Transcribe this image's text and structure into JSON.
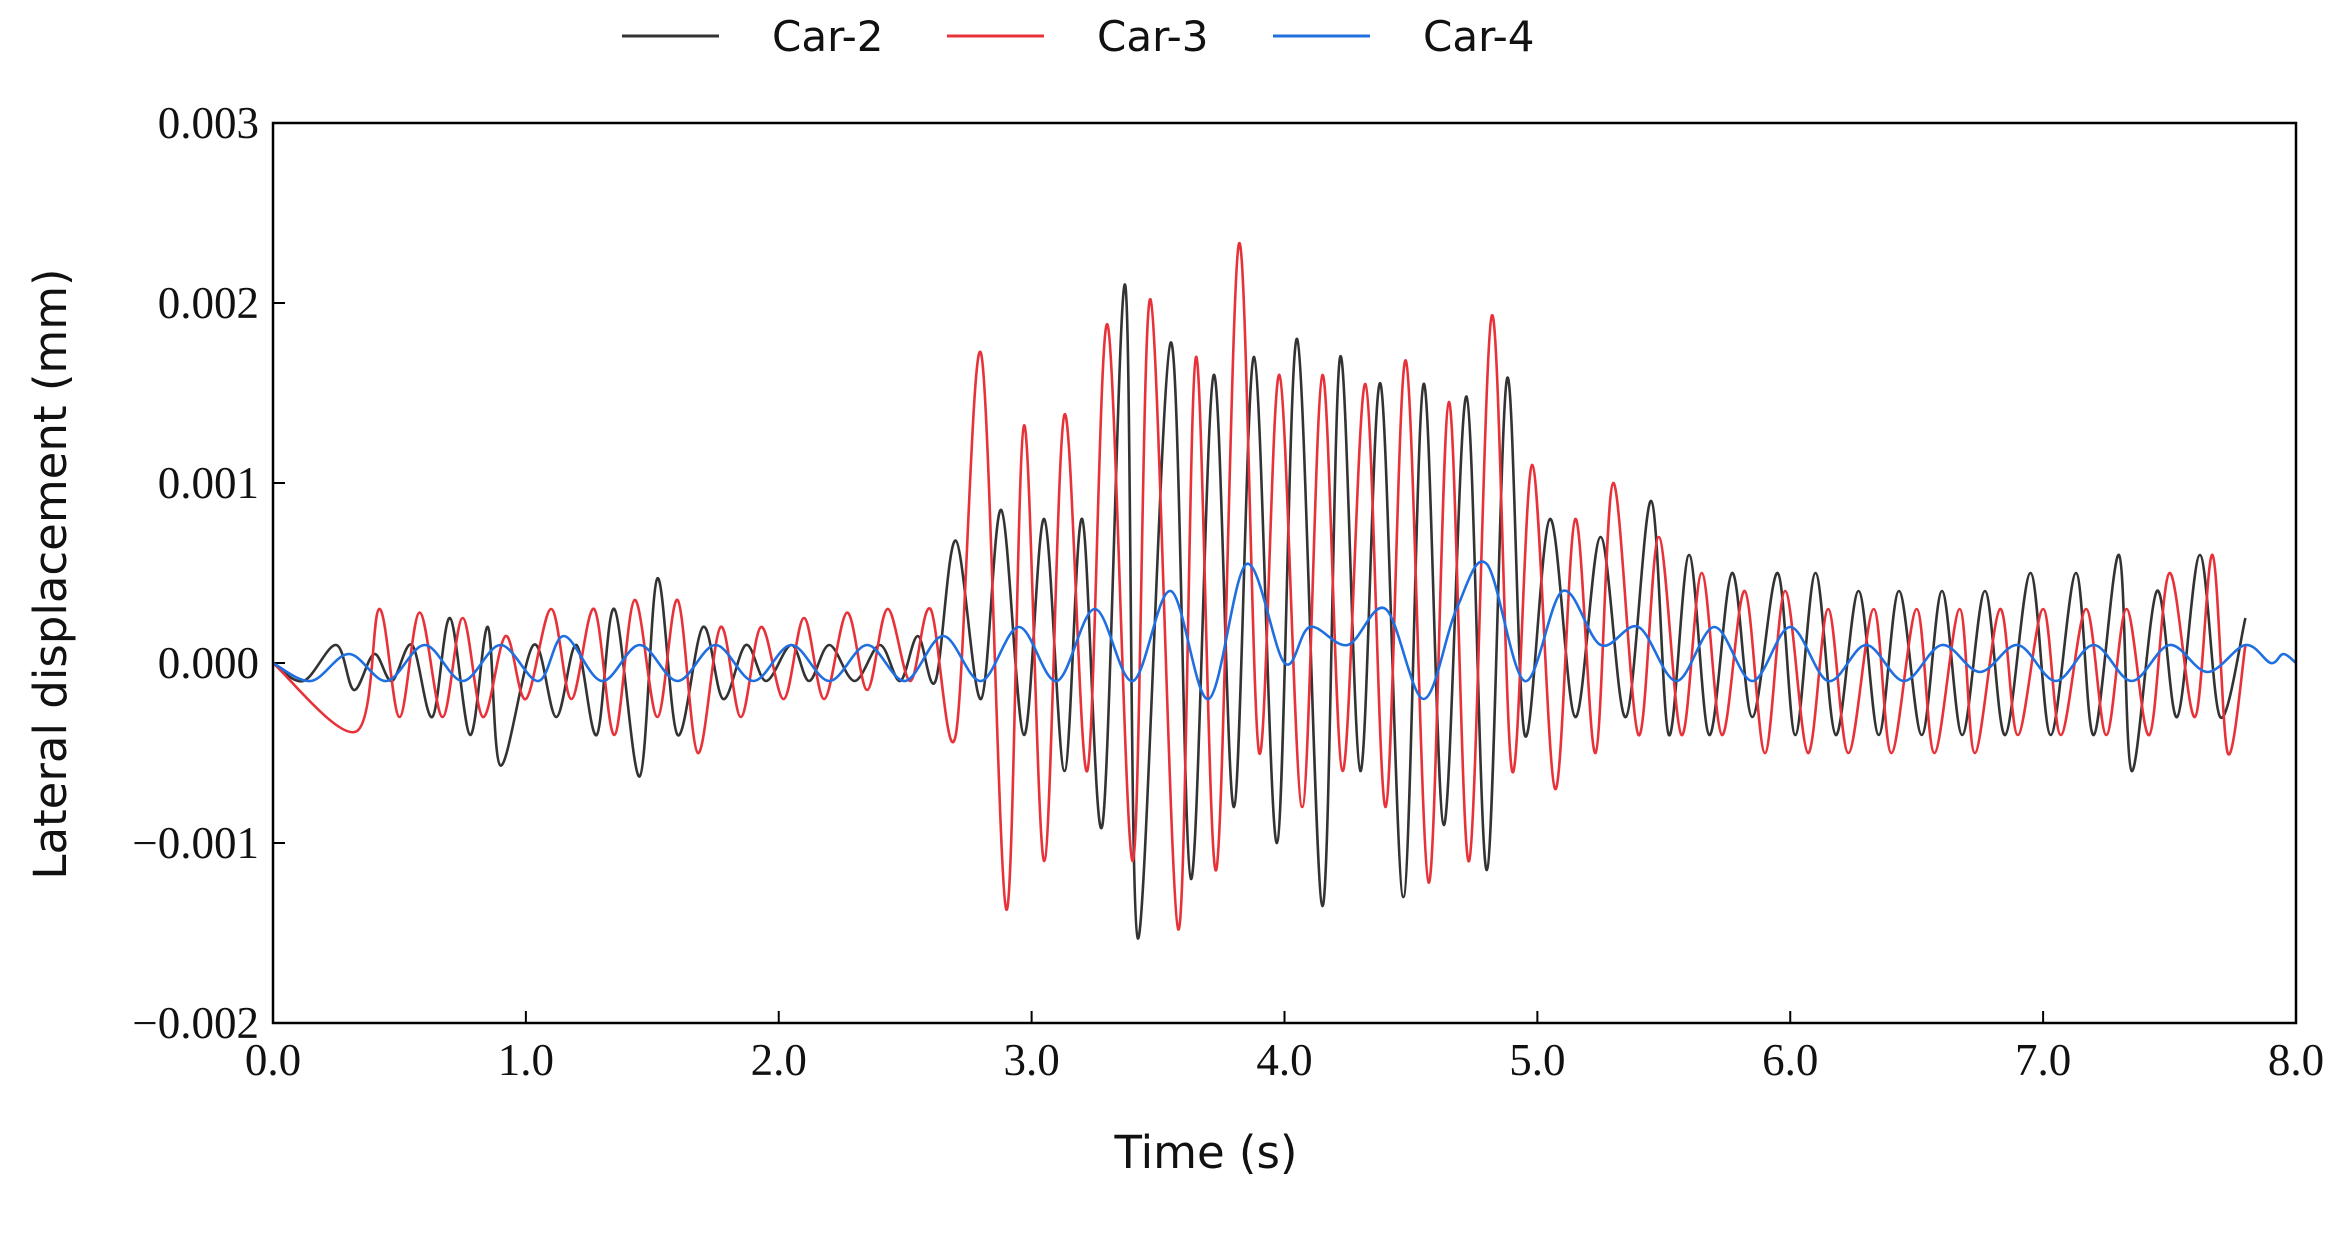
{
  "chart_data": {
    "type": "line",
    "xlabel": "Time (s)",
    "ylabel": "Lateral displacement (mm)",
    "xlim": [
      0,
      8
    ],
    "ylim": [
      -0.002,
      0.003
    ],
    "xticks": [
      {
        "value": 0,
        "label": "0.0"
      },
      {
        "value": 1,
        "label": "1.0"
      },
      {
        "value": 2,
        "label": "2.0"
      },
      {
        "value": 3,
        "label": "3.0"
      },
      {
        "value": 4,
        "label": "4.0"
      },
      {
        "value": 5,
        "label": "5.0"
      },
      {
        "value": 6,
        "label": "6.0"
      },
      {
        "value": 7,
        "label": "7.0"
      },
      {
        "value": 8,
        "label": "8.0"
      }
    ],
    "yticks": [
      {
        "value": -0.002,
        "label": "−0.002"
      },
      {
        "value": -0.001,
        "label": "−0.001"
      },
      {
        "value": 0,
        "label": "0.000"
      },
      0.001,
      0.002,
      0.003
    ],
    "legend": "top",
    "series": [
      {
        "name": "Car-2",
        "color": "#333333",
        "x": [
          0,
          0.12,
          0.25,
          0.32,
          0.4,
          0.47,
          0.55,
          0.63,
          0.7,
          0.78,
          0.85,
          0.9,
          1.03,
          1.12,
          1.2,
          1.28,
          1.35,
          1.45,
          1.52,
          1.6,
          1.7,
          1.78,
          1.87,
          1.95,
          2.05,
          2.12,
          2.2,
          2.3,
          2.4,
          2.48,
          2.55,
          2.62,
          2.7,
          2.8,
          2.88,
          2.97,
          3.05,
          3.13,
          3.2,
          3.28,
          3.37,
          3.42,
          3.55,
          3.63,
          3.72,
          3.8,
          3.88,
          3.97,
          4.05,
          4.15,
          4.22,
          4.3,
          4.38,
          4.47,
          4.55,
          4.63,
          4.72,
          4.8,
          4.88,
          4.95,
          5.05,
          5.15,
          5.25,
          5.35,
          5.45,
          5.52,
          5.6,
          5.68,
          5.77,
          5.85,
          5.95,
          6.02,
          6.1,
          6.18,
          6.27,
          6.35,
          6.43,
          6.52,
          6.6,
          6.68,
          6.77,
          6.85,
          6.95,
          7.03,
          7.13,
          7.2,
          7.3,
          7.35,
          7.45,
          7.53,
          7.62,
          7.7,
          7.8
        ],
        "values": [
          0,
          -0.0001,
          0.0001,
          -0.00015,
          5e-05,
          -0.0001,
          0.0001,
          -0.0003,
          0.00025,
          -0.0004,
          0.0002,
          -0.00057,
          0.0001,
          -0.0003,
          0.0001,
          -0.0004,
          0.0003,
          -0.00063,
          0.00047,
          -0.0004,
          0.0002,
          -0.0002,
          0.0001,
          -0.0001,
          0.0001,
          -0.0001,
          0.0001,
          -0.0001,
          0.0001,
          -0.0001,
          0.00015,
          -0.0001,
          0.00068,
          -0.0002,
          0.00085,
          -0.0004,
          0.0008,
          -0.0006,
          0.0008,
          -0.0009,
          0.0021,
          -0.00153,
          0.00178,
          -0.0012,
          0.0016,
          -0.0008,
          0.0017,
          -0.001,
          0.0018,
          -0.00135,
          0.0017,
          -0.0006,
          0.00155,
          -0.0013,
          0.00155,
          -0.0009,
          0.00148,
          -0.00115,
          0.00158,
          -0.0004,
          0.0008,
          -0.0003,
          0.0007,
          -0.0003,
          0.0009,
          -0.0004,
          0.0006,
          -0.0004,
          0.0005,
          -0.0003,
          0.0005,
          -0.0004,
          0.0005,
          -0.0004,
          0.0004,
          -0.0004,
          0.0004,
          -0.0004,
          0.0004,
          -0.0004,
          0.0004,
          -0.0004,
          0.0005,
          -0.0004,
          0.0005,
          -0.0004,
          0.0006,
          -0.0006,
          0.0004,
          -0.0003,
          0.0006,
          -0.0003,
          0.00025
        ]
      },
      {
        "name": "Car-3",
        "color": "#e8323a",
        "x": [
          0,
          0.33,
          0.42,
          0.5,
          0.58,
          0.67,
          0.75,
          0.83,
          0.92,
          1.0,
          1.1,
          1.18,
          1.27,
          1.35,
          1.43,
          1.52,
          1.6,
          1.68,
          1.77,
          1.85,
          1.93,
          2.02,
          2.1,
          2.18,
          2.27,
          2.35,
          2.43,
          2.52,
          2.6,
          2.7,
          2.8,
          2.9,
          2.97,
          3.05,
          3.13,
          3.22,
          3.3,
          3.4,
          3.47,
          3.58,
          3.65,
          3.73,
          3.82,
          3.9,
          3.98,
          4.07,
          4.15,
          4.23,
          4.32,
          4.4,
          4.48,
          4.57,
          4.65,
          4.73,
          4.82,
          4.9,
          4.98,
          5.07,
          5.15,
          5.23,
          5.3,
          5.4,
          5.48,
          5.57,
          5.65,
          5.73,
          5.82,
          5.9,
          5.98,
          6.07,
          6.15,
          6.23,
          6.33,
          6.4,
          6.5,
          6.57,
          6.67,
          6.73,
          6.83,
          6.9,
          7.0,
          7.07,
          7.17,
          7.25,
          7.33,
          7.42,
          7.5,
          7.6,
          7.67,
          7.73,
          7.8
        ],
        "values": [
          0,
          -0.00038,
          0.0003,
          -0.0003,
          0.00028,
          -0.0003,
          0.00025,
          -0.0003,
          0.00015,
          -0.0002,
          0.0003,
          -0.0002,
          0.0003,
          -0.0004,
          0.00035,
          -0.0003,
          0.00035,
          -0.0005,
          0.0002,
          -0.0003,
          0.0002,
          -0.0002,
          0.00025,
          -0.0002,
          0.00028,
          -0.00015,
          0.0003,
          -0.0001,
          0.0003,
          -0.0004,
          0.00172,
          -0.00137,
          0.00132,
          -0.0011,
          0.00138,
          -0.0006,
          0.00188,
          -0.0011,
          0.00202,
          -0.00148,
          0.0017,
          -0.00115,
          0.00233,
          -0.0005,
          0.0016,
          -0.0008,
          0.0016,
          -0.0006,
          0.00155,
          -0.0008,
          0.00168,
          -0.00122,
          0.00145,
          -0.0011,
          0.00193,
          -0.0006,
          0.0011,
          -0.0007,
          0.0008,
          -0.0005,
          0.001,
          -0.0004,
          0.0007,
          -0.0004,
          0.0005,
          -0.0004,
          0.0004,
          -0.0005,
          0.0004,
          -0.0005,
          0.0003,
          -0.0005,
          0.0003,
          -0.0005,
          0.0003,
          -0.0005,
          0.0003,
          -0.0005,
          0.0003,
          -0.0004,
          0.0003,
          -0.0004,
          0.0003,
          -0.0004,
          0.0003,
          -0.0004,
          0.0005,
          -0.0003,
          0.0006,
          -0.0005,
          0.0001
        ]
      },
      {
        "name": "Car-4",
        "color": "#1f6fe0",
        "x": [
          0,
          0.15,
          0.3,
          0.45,
          0.6,
          0.75,
          0.9,
          1.05,
          1.15,
          1.3,
          1.45,
          1.6,
          1.75,
          1.9,
          2.05,
          2.2,
          2.35,
          2.5,
          2.65,
          2.8,
          2.95,
          3.1,
          3.25,
          3.4,
          3.55,
          3.7,
          3.85,
          4.0,
          4.1,
          4.25,
          4.4,
          4.55,
          4.68,
          4.8,
          4.95,
          5.1,
          5.25,
          5.4,
          5.55,
          5.7,
          5.85,
          6.0,
          6.15,
          6.3,
          6.45,
          6.6,
          6.75,
          6.9,
          7.05,
          7.2,
          7.35,
          7.5,
          7.65,
          7.8,
          7.9,
          7.95,
          8.0
        ],
        "values": [
          0,
          -0.0001,
          5e-05,
          -0.0001,
          0.0001,
          -0.0001,
          0.0001,
          -0.0001,
          0.00015,
          -0.0001,
          0.0001,
          -0.0001,
          0.0001,
          -0.0001,
          0.0001,
          -0.0001,
          0.0001,
          -0.0001,
          0.00015,
          -0.0001,
          0.0002,
          -0.0001,
          0.0003,
          -0.0001,
          0.0004,
          -0.0002,
          0.00055,
          0,
          0.0002,
          0.0001,
          0.0003,
          -0.0002,
          0.0003,
          0.00055,
          -0.0001,
          0.0004,
          0.0001,
          0.0002,
          -0.0001,
          0.0002,
          -0.0001,
          0.0002,
          -0.0001,
          0.0001,
          -0.0001,
          0.0001,
          -5e-05,
          0.0001,
          -0.0001,
          0.0001,
          -0.0001,
          0.0001,
          -5e-05,
          0.0001,
          0,
          5e-05,
          0
        ]
      }
    ]
  }
}
